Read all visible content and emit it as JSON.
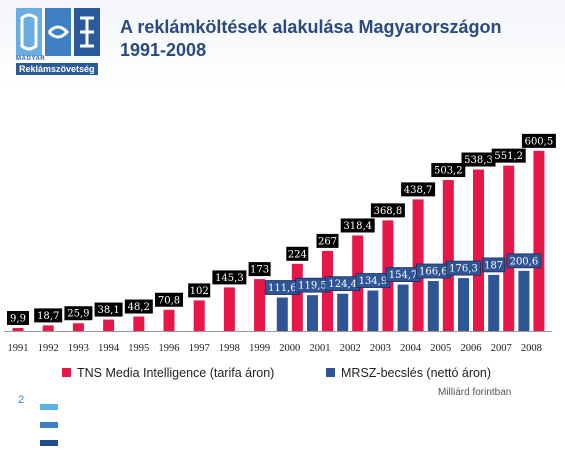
{
  "logo": {
    "small_text": "MAGYAR",
    "name": "Reklámszövetség",
    "color": "#2a5a9a"
  },
  "title": {
    "line1": "A reklámköltések alakulása Magyarországon",
    "line2": "1991-2008"
  },
  "chart_data": {
    "type": "bar",
    "categories": [
      "1991",
      "1992",
      "1993",
      "1994",
      "1995",
      "1996",
      "1997",
      "1998",
      "1999",
      "2000",
      "2001",
      "2002",
      "2003",
      "2004",
      "2005",
      "2006",
      "2007",
      "2008"
    ],
    "series": [
      {
        "name": "TNS Media Intelligence (tarifa áron)",
        "color": "#e8174a",
        "values": [
          9.9,
          18.7,
          25.9,
          38.1,
          48.2,
          70.8,
          102,
          145.3,
          173,
          224,
          267,
          318.4,
          368.8,
          438.7,
          503.2,
          538.3,
          551.2,
          600.5
        ],
        "labels": [
          "9,9",
          "18,7",
          "25,9",
          "38,1",
          "48,2",
          "70,8",
          "102",
          "145,3",
          "173",
          "224",
          "267",
          "318,4",
          "368,8",
          "438,7",
          "503,2",
          "538,3",
          "551,2",
          "600,5"
        ]
      },
      {
        "name": "MRSZ-becslés (nettó áron)",
        "color": "#2f5597",
        "values": [
          null,
          null,
          null,
          null,
          null,
          null,
          null,
          null,
          null,
          111.6,
          119.5,
          124.4,
          134.9,
          154.7,
          166.6,
          176.3,
          187,
          200.6
        ],
        "labels": [
          null,
          null,
          null,
          null,
          null,
          null,
          null,
          null,
          null,
          "111,6",
          "119,5",
          "124,4",
          "134,9",
          "154,7",
          "166,6",
          "176,3",
          "187",
          "200,6"
        ]
      }
    ],
    "ylim": [
      0,
      650
    ],
    "grid": false,
    "legend_placement": "bottom",
    "unit_note": "Milliárd forintban"
  },
  "footer": {
    "page_number": "2",
    "bar_colors": [
      "#5ab4e5",
      "#3d7fc1",
      "#1f4e8c"
    ]
  }
}
